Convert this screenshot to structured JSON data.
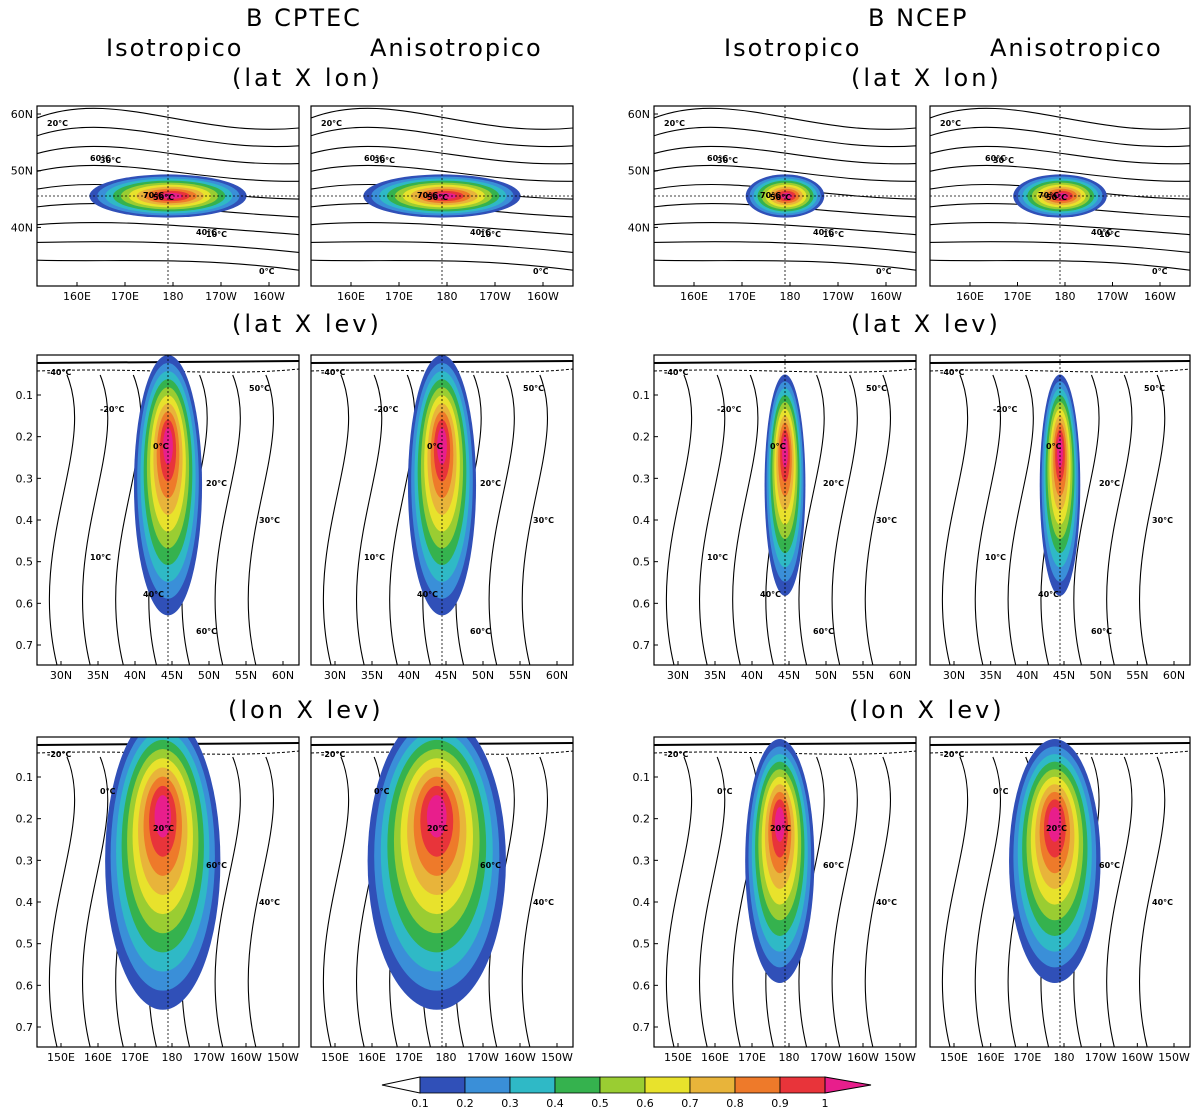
{
  "headers": [
    {
      "group": "B CPTEC",
      "left": "Isotropico",
      "right": "Anisotropico"
    },
    {
      "group": "B NCEP",
      "left": "Isotropico",
      "right": "Anisotropico"
    }
  ],
  "row_titles": [
    "(lat X lon)",
    "(lat X lev)",
    "(lon X lev)"
  ],
  "chart_data": {
    "type": "contour-panels",
    "colorbar": {
      "ticks": [
        "0.1",
        "0.2",
        "0.3",
        "0.4",
        "0.5",
        "0.6",
        "0.7",
        "0.8",
        "0.9",
        "1"
      ],
      "colors": [
        "#ffffff",
        "#3050b8",
        "#3a8fd8",
        "#2fb9c6",
        "#35b24e",
        "#9acd32",
        "#e8e22c",
        "#e8b43a",
        "#ee7a2a",
        "#e8343a",
        "#e81e8c"
      ]
    },
    "rows": [
      {
        "name": "lat X lon",
        "x_ticks": [
          "160E",
          "170E",
          "180",
          "170W",
          "160W"
        ],
        "y_ticks": [
          "60N",
          "50N",
          "40N"
        ],
        "contour_labels": [
          "20°C",
          "30°C",
          "50°C",
          "10°C",
          "0°C",
          "60°C",
          "70°C",
          "40°C"
        ],
        "panels": [
          {
            "label": "CPTEC Isotropico",
            "blob_width": 1.0,
            "peak": 1.0
          },
          {
            "label": "CPTEC Anisotropico",
            "blob_width": 1.0,
            "peak": 1.0
          },
          {
            "label": "NCEP Isotropico",
            "blob_width": 0.5,
            "peak": 1.0
          },
          {
            "label": "NCEP Anisotropico",
            "blob_width": 0.6,
            "peak": 1.0
          }
        ]
      },
      {
        "name": "lat X lev",
        "x_ticks": [
          "30N",
          "35N",
          "40N",
          "45N",
          "50N",
          "55N",
          "60N"
        ],
        "y_ticks": [
          "0.1",
          "0.2",
          "0.3",
          "0.4",
          "0.5",
          "0.6",
          "0.7"
        ],
        "contour_labels": [
          "-40°C",
          "-20°C",
          "0°C",
          "20°C",
          "30°C",
          "10°C",
          "40°C",
          "60°C",
          "50°C"
        ],
        "panels": [
          {
            "label": "CPTEC Isotropico",
            "blob_width": 1.0
          },
          {
            "label": "CPTEC Anisotropico",
            "blob_width": 1.0
          },
          {
            "label": "NCEP Isotropico",
            "blob_width": 0.6
          },
          {
            "label": "NCEP Anisotropico",
            "blob_width": 0.6
          }
        ]
      },
      {
        "name": "lon X lev",
        "x_ticks": [
          "150E",
          "160E",
          "170E",
          "180",
          "170W",
          "160W",
          "150W"
        ],
        "y_ticks": [
          "0.1",
          "0.2",
          "0.3",
          "0.4",
          "0.5",
          "0.6",
          "0.7"
        ],
        "contour_labels": [
          "-20°C",
          "0°C",
          "20°C",
          "60°C",
          "40°C"
        ],
        "panels": [
          {
            "label": "CPTEC Isotropico",
            "blob_width": 1.0
          },
          {
            "label": "CPTEC Anisotropico",
            "blob_width": 1.2
          },
          {
            "label": "NCEP Isotropico",
            "blob_width": 0.6
          },
          {
            "label": "NCEP Anisotropico",
            "blob_width": 0.8
          }
        ]
      }
    ]
  }
}
